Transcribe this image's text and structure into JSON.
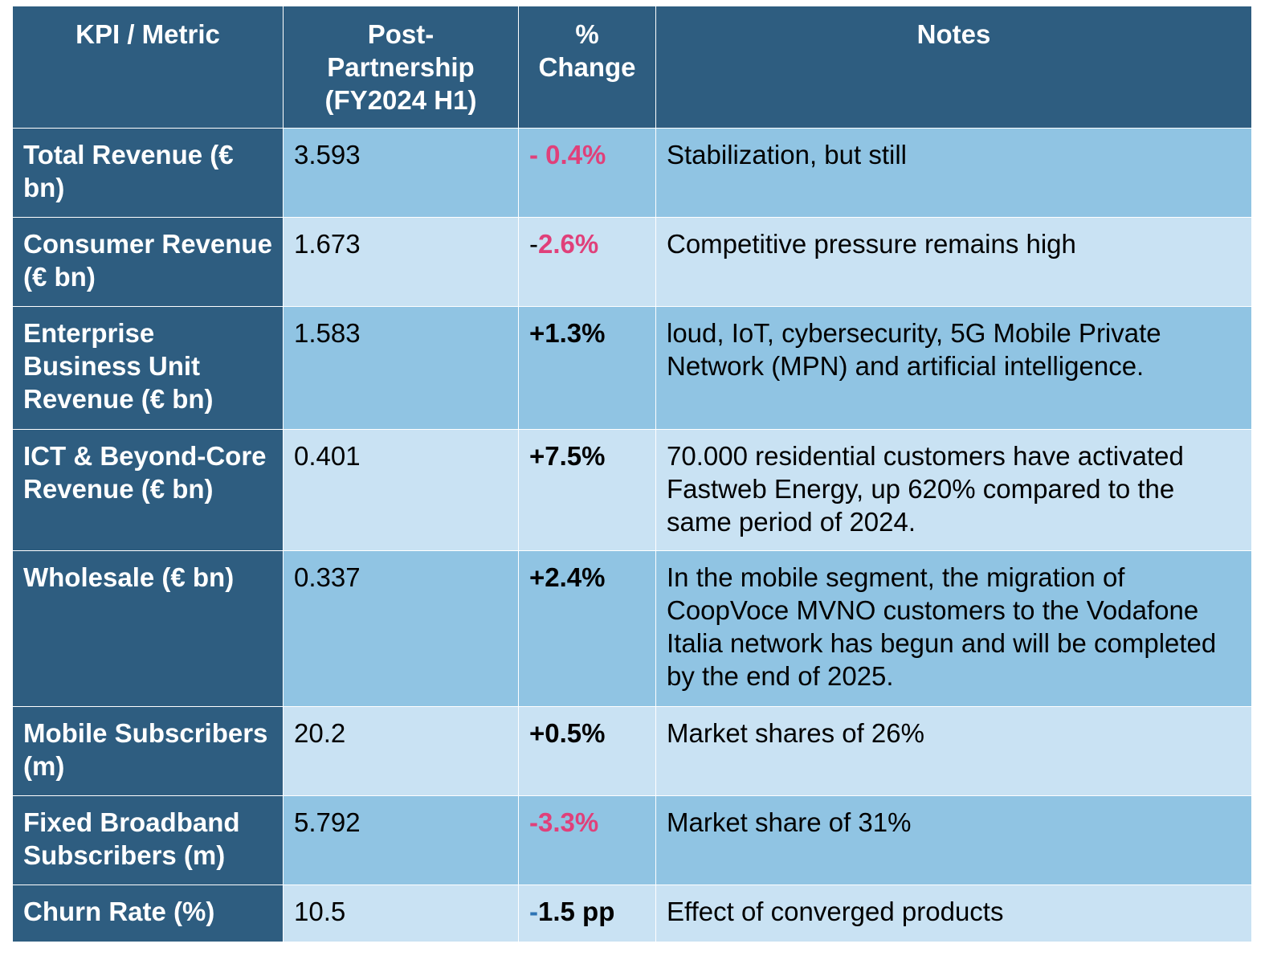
{
  "header": {
    "metric": "KPI / Metric",
    "post": "Post-Partnership (FY2024 H1)",
    "change": "% Change",
    "notes": "Notes"
  },
  "rows": [
    {
      "metric": "Total Revenue (€ bn)",
      "value": "3.593",
      "change_sign": "- ",
      "change_rest": "0.4%",
      "note": "Stabilization, but still"
    },
    {
      "metric": "Consumer Revenue (€ bn)",
      "value": "1.673",
      "change_sign": "-",
      "change_rest": "2.6%",
      "note": "Competitive pressure remains high"
    },
    {
      "metric": "Enterprise Business Unit Revenue (€ bn)",
      "value": "1.583",
      "change_sign": "+",
      "change_rest": "1.3%",
      "note": "loud, IoT, cybersecurity, 5G Mobile Private Network (MPN) and artificial intelligence."
    },
    {
      "metric": "ICT & Beyond-Core Revenue (€ bn)",
      "value": "0.401",
      "change_sign": "+",
      "change_rest": "7.5%",
      "note": "70.000 residential customers have activated Fastweb Energy, up 620% compared to the same period of 2024."
    },
    {
      "metric": "Wholesale (€ bn)",
      "value": "0.337",
      "change_sign": "+",
      "change_rest": "2.4%",
      "note": "In the mobile segment, the migration of CoopVoce MVNO customers to the Vodafone Italia network has begun and will be completed by the end of 2025."
    },
    {
      "metric": "Mobile Subscribers (m)",
      "value": "20.2",
      "change_sign": "+",
      "change_rest": "0.5%",
      "note": "Market shares of 26%"
    },
    {
      "metric": "Fixed Broadband Subscribers (m)",
      "value": "5.792",
      "change_sign": "-",
      "change_rest": "3.3%",
      "note": "Market share of 31%"
    },
    {
      "metric": "Churn Rate (%)",
      "value": "10.5",
      "change_sign": "-",
      "change_rest": "1.5 pp",
      "note": "Effect of converged products"
    }
  ],
  "colors": {
    "header_bg": "#2e5d80",
    "row_a_bg": "#90c4e3",
    "row_b_bg": "#c9e2f3",
    "negative": "#e0407a",
    "sign_blue": "#2e74b5"
  }
}
